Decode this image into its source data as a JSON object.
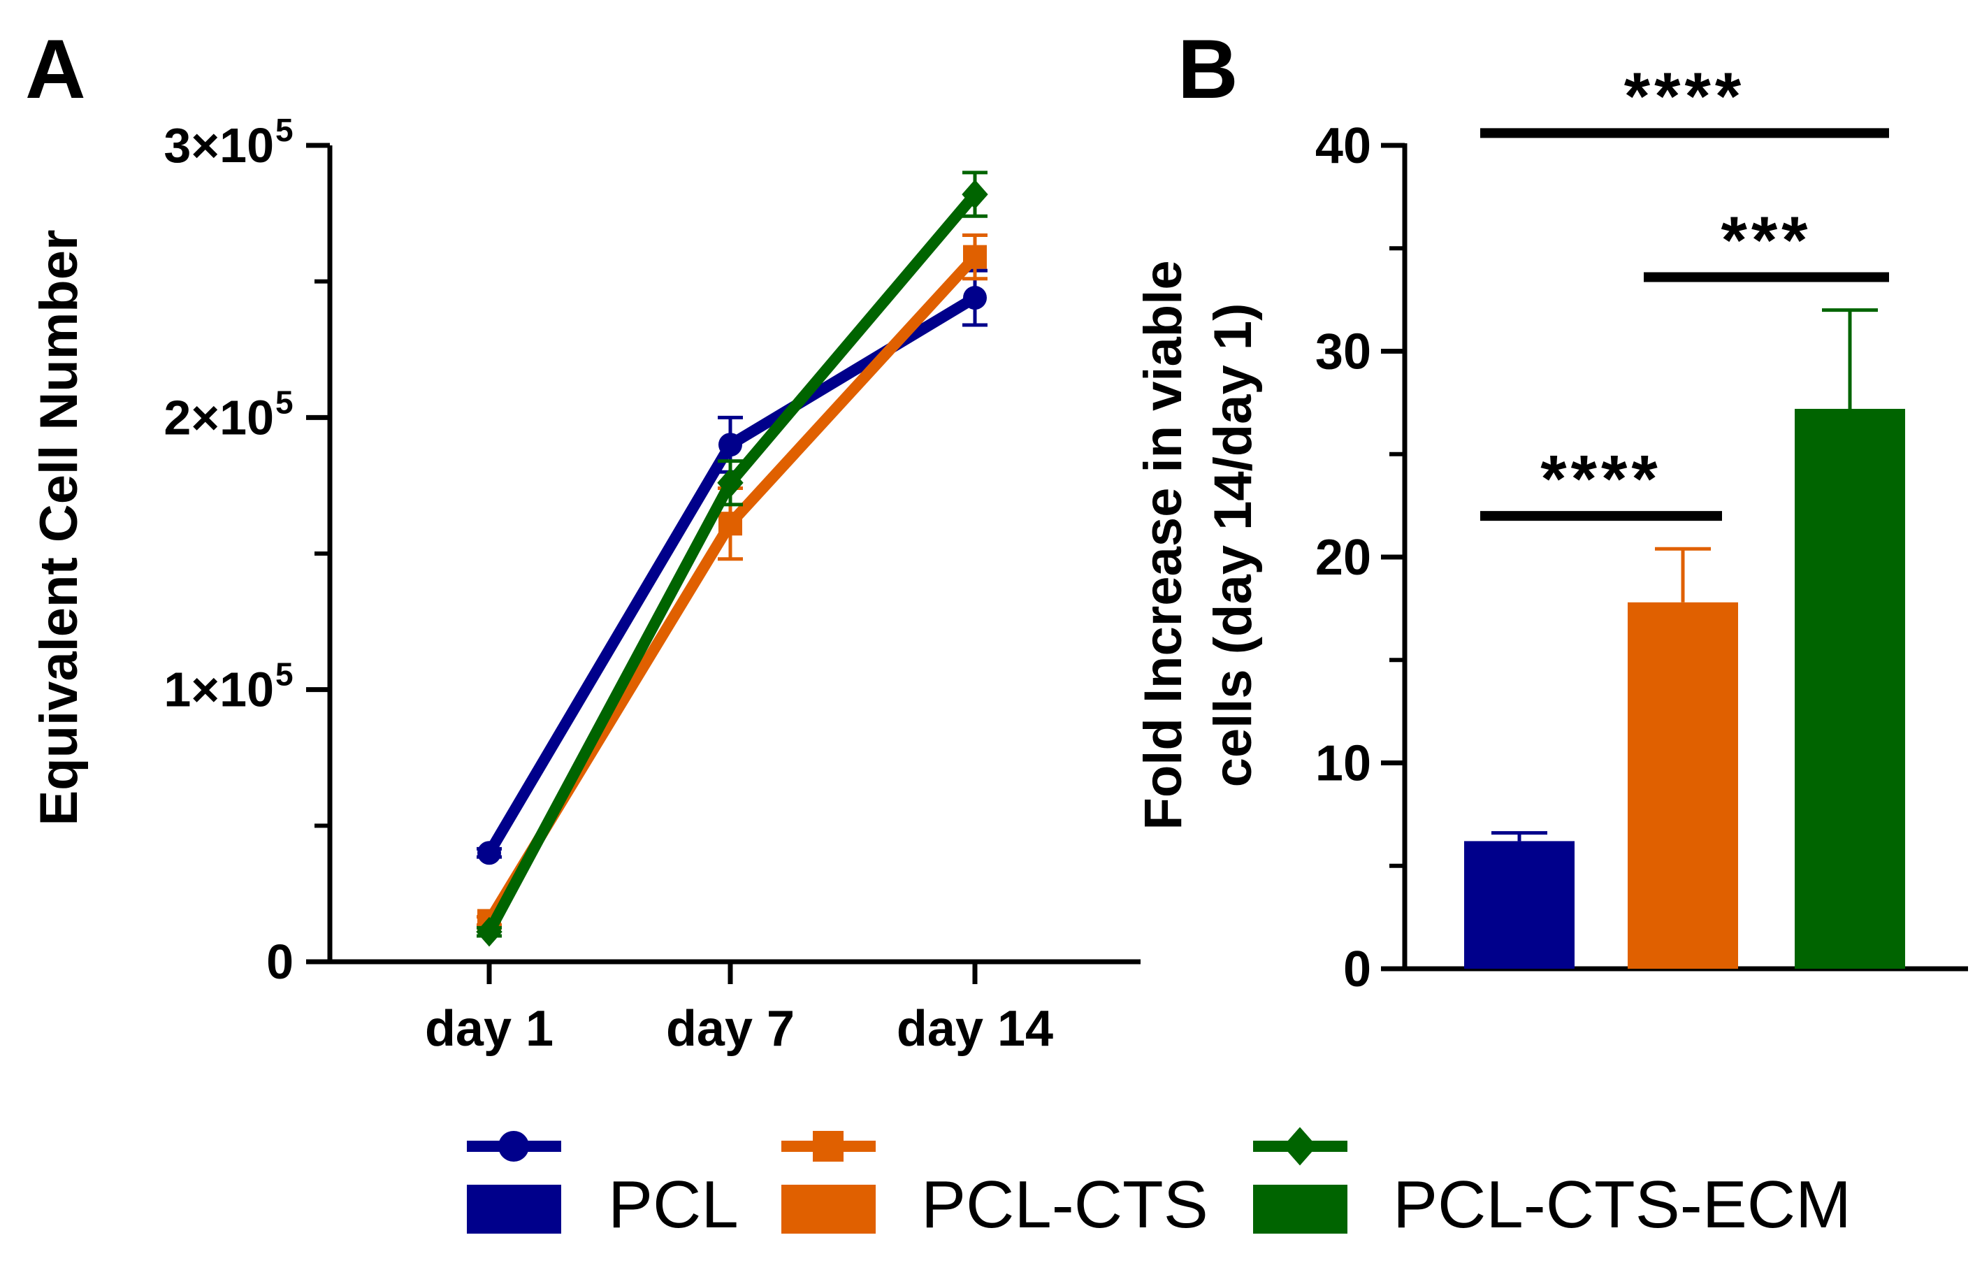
{
  "panels": {
    "a_label": "A",
    "b_label": "B"
  },
  "colors": {
    "PCL": "#00008b",
    "PCL-CTS": "#e06000",
    "PCL-CTS-ECM": "#006400",
    "axis": "#000000"
  },
  "legend": {
    "entries": [
      {
        "name": "PCL",
        "marker": "circle"
      },
      {
        "name": "PCL-CTS",
        "marker": "square"
      },
      {
        "name": "PCL-CTS-ECM",
        "marker": "diamond"
      }
    ]
  },
  "chart_data": [
    {
      "type": "line",
      "panel": "A",
      "title": "",
      "xlabel": "",
      "ylabel": "Equivalent Cell Number",
      "categories": [
        "day 1",
        "day 7",
        "day 14"
      ],
      "ylim": [
        0,
        300000
      ],
      "yticks": [
        {
          "value": 0,
          "mantissa": "0",
          "exponent": ""
        },
        {
          "value": 100000,
          "mantissa": "1×10",
          "exponent": "5"
        },
        {
          "value": 200000,
          "mantissa": "2×10",
          "exponent": "5"
        },
        {
          "value": 300000,
          "mantissa": "3×10",
          "exponent": "5"
        }
      ],
      "yminor": [
        50000,
        150000,
        250000
      ],
      "series": [
        {
          "name": "PCL",
          "values": [
            40000,
            190000,
            244000
          ],
          "errors": [
            1500,
            10000,
            10000
          ]
        },
        {
          "name": "PCL-CTS",
          "values": [
            15000,
            161000,
            259000
          ],
          "errors": [
            1500,
            13000,
            8000
          ]
        },
        {
          "name": "PCL-CTS-ECM",
          "values": [
            11000,
            176000,
            282000
          ],
          "errors": [
            1500,
            8000,
            8000
          ]
        }
      ]
    },
    {
      "type": "bar",
      "panel": "B",
      "title": "",
      "xlabel": "",
      "ylabel_line1": "Fold Increase in viable",
      "ylabel_line2": "cells (day 14/day 1)",
      "categories": [
        "PCL",
        "PCL-CTS",
        "PCL-CTS-ECM"
      ],
      "values": [
        6.2,
        17.8,
        27.2
      ],
      "errors": [
        0.4,
        2.6,
        4.8
      ],
      "ylim": [
        0,
        40
      ],
      "yticks": [
        0,
        10,
        20,
        30,
        40
      ],
      "yminor": [
        5,
        15,
        25,
        35
      ],
      "significance": [
        {
          "from": 0,
          "to": 2,
          "label": "****",
          "y": 40.6
        },
        {
          "from": 1,
          "to": 2,
          "label": "***",
          "y": 33.6
        },
        {
          "from": 0,
          "to": 1,
          "label": "****",
          "y": 22
        }
      ]
    }
  ]
}
